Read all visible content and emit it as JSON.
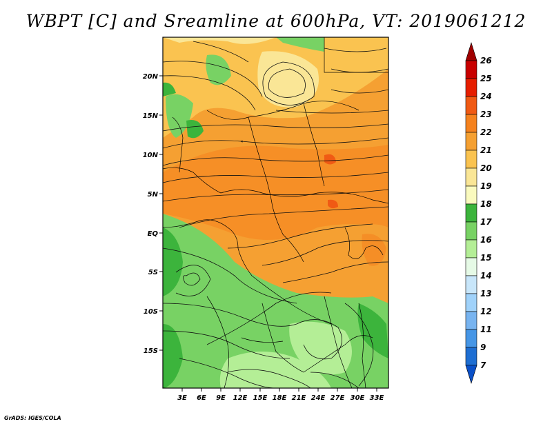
{
  "title": "WBPT [C] and Sreamline at 600hPa, VT: 2019061212",
  "credit": "GrADS: IGES/COLA",
  "lat_ticks": [
    "20N",
    "15N",
    "10N",
    "5N",
    "EQ",
    "5S",
    "10S",
    "15S"
  ],
  "lon_ticks": [
    "3E",
    "6E",
    "9E",
    "12E",
    "15E",
    "18E",
    "21E",
    "24E",
    "27E",
    "30E",
    "33E"
  ],
  "colorbar_labels": [
    "26",
    "25",
    "24",
    "23",
    "22",
    "21",
    "20",
    "19",
    "18",
    "17",
    "16",
    "15",
    "14",
    "13",
    "12",
    "11",
    "9",
    "7"
  ],
  "colorbar_colors": [
    "#a00000",
    "#c80000",
    "#e61e00",
    "#f05a14",
    "#f5821e",
    "#f5a032",
    "#fac350",
    "#fae696",
    "#fafabe",
    "#3cb43c",
    "#78d264",
    "#b4ee96",
    "#e6fae6",
    "#c8e6fa",
    "#a0d2fa",
    "#78b4f0",
    "#4696e6",
    "#1e6ed2",
    "#0a50c8"
  ]
}
